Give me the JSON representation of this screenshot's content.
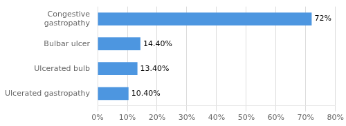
{
  "chart_data": {
    "type": "bar",
    "orientation": "horizontal",
    "categories": [
      "Congestive\ngastropathy",
      "Bulbar ulcer",
      "Ulcerated bulb",
      "Ulcerated gastropathy"
    ],
    "values": [
      72.0,
      14.4,
      13.4,
      10.4
    ],
    "value_labels": [
      "72%",
      "14.40%",
      "13.40%",
      "10.40%"
    ],
    "data_labels": true,
    "color": "#4d96e0",
    "xlim": [
      0,
      80
    ],
    "xticks": [
      {
        "value": 0,
        "label": "0%"
      },
      {
        "value": 10,
        "label": "10%"
      },
      {
        "value": 20,
        "label": "20%"
      },
      {
        "value": 30,
        "label": "30%"
      },
      {
        "value": 40,
        "label": "40%"
      },
      {
        "value": 50,
        "label": "50%"
      },
      {
        "value": 60,
        "label": "60%"
      },
      {
        "value": 70,
        "label": "70%"
      },
      {
        "value": 80,
        "label": "80%"
      }
    ],
    "grid": true
  }
}
